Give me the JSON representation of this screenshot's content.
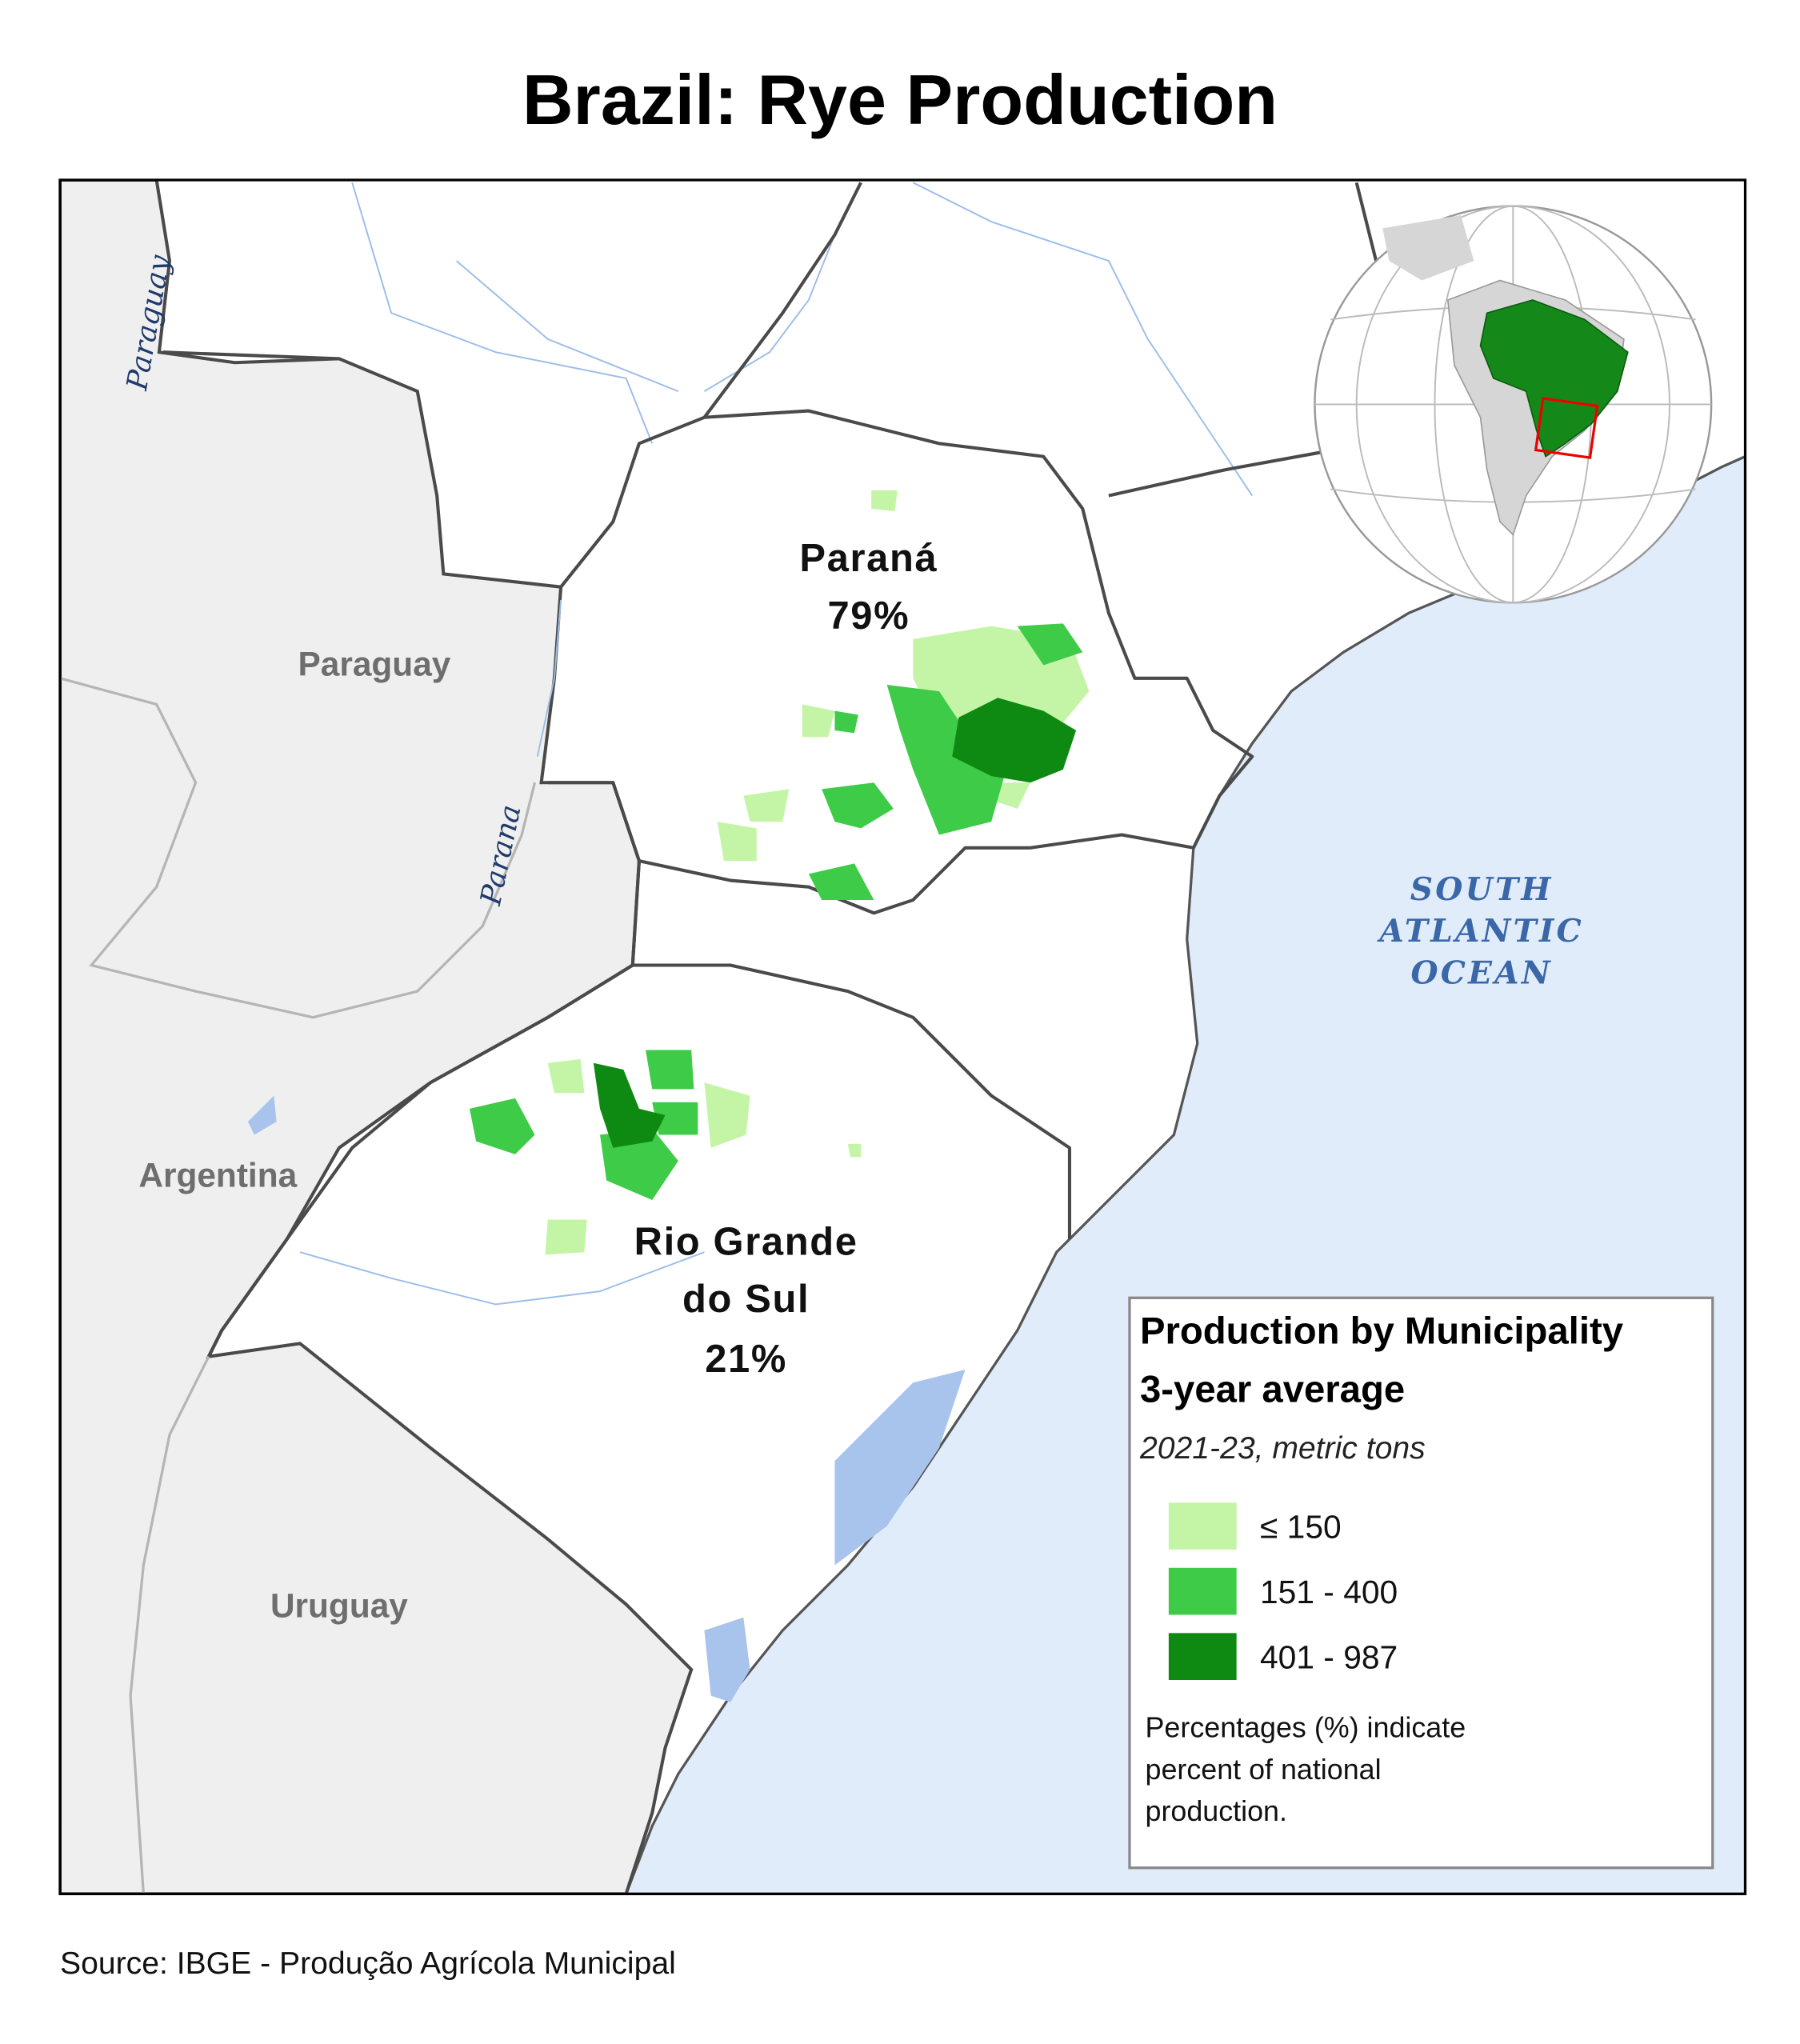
{
  "title": "Brazil: Rye Production",
  "map": {
    "states": [
      {
        "name": "Paraná",
        "share": "79%"
      },
      {
        "name_lines": [
          "Rio Grande",
          "do Sul"
        ],
        "share": "21%"
      }
    ],
    "countries": [
      "Paraguay",
      "Argentina",
      "Uruguay"
    ],
    "rivers": [
      "Paraguay",
      "Parana"
    ],
    "ocean_lines": [
      "SOUTH",
      "ATLANTIC",
      "OCEAN"
    ]
  },
  "legend": {
    "title_lines": [
      "Production by Municipality",
      "3-year average"
    ],
    "subtitle": "2021-23, metric tons",
    "items": [
      {
        "label": "≤ 150",
        "color": "#c4f5a6"
      },
      {
        "label": "151 - 400",
        "color": "#3ecb47"
      },
      {
        "label": "401 - 987",
        "color": "#0e8a12"
      }
    ],
    "note_lines": [
      "Percentages (%) indicate",
      "percent of national",
      "production."
    ]
  },
  "source": "Source: IBGE - Produção Agrícola Municipal"
}
